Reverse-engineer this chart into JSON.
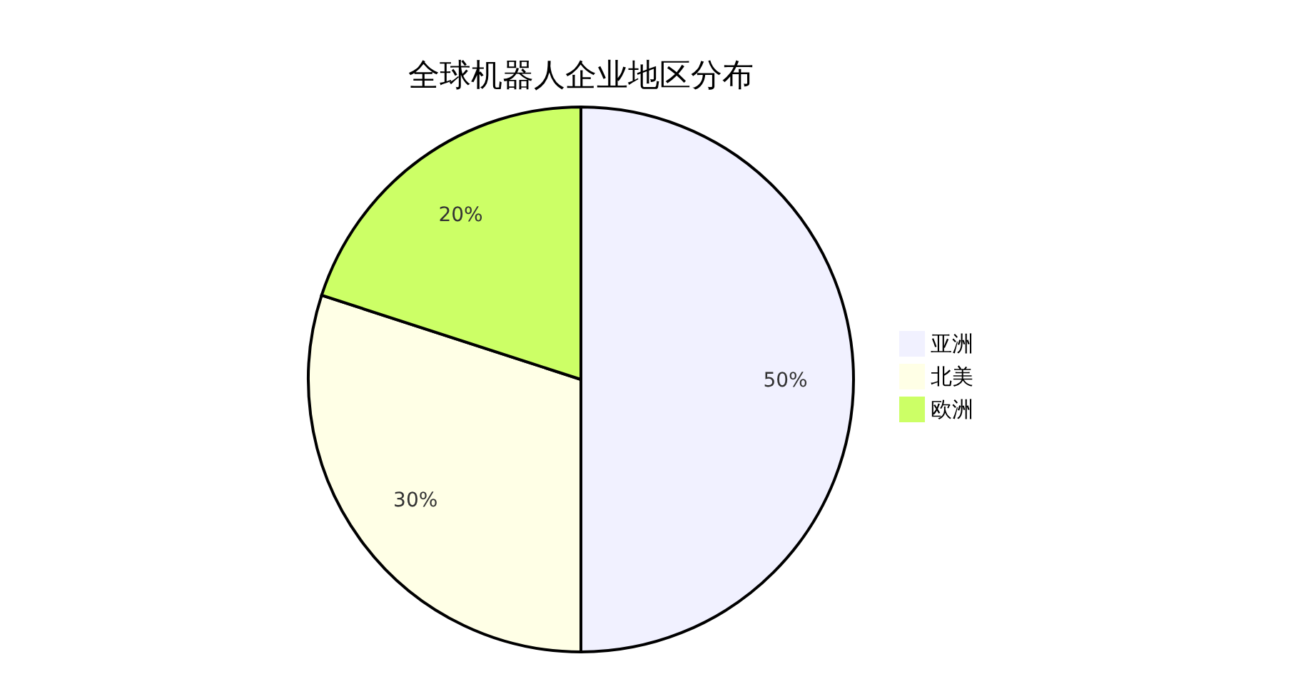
{
  "chart_data": {
    "type": "pie",
    "title": "全球机器人企业地区分布",
    "categories": [
      "亚洲",
      "北美",
      "欧洲"
    ],
    "values": [
      50,
      30,
      20
    ],
    "colors": [
      "#f1f1ff",
      "#ffffe6",
      "#ccff66"
    ],
    "value_labels": [
      "50%",
      "30%",
      "20%"
    ],
    "legend": "right"
  }
}
